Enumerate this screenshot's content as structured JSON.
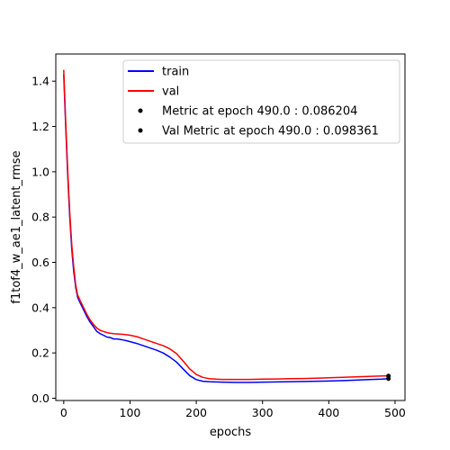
{
  "chart_data": {
    "type": "line",
    "title": "",
    "xlabel": "epochs",
    "ylabel": "f1tof4_w_ae1_latent_rmse",
    "xlim": [
      -12,
      515
    ],
    "ylim": [
      -0.01,
      1.52
    ],
    "xticks": [
      0,
      100,
      200,
      300,
      400,
      500
    ],
    "yticks": [
      0.0,
      0.2,
      0.4,
      0.6,
      0.8,
      1.0,
      1.2,
      1.4
    ],
    "xtick_labels": [
      "0",
      "100",
      "200",
      "300",
      "400",
      "500"
    ],
    "ytick_labels": [
      "0.0",
      "0.2",
      "0.4",
      "0.6",
      "0.8",
      "1.0",
      "1.2",
      "1.4"
    ],
    "grid": false,
    "legend_position": "top-right",
    "series": [
      {
        "name": "train",
        "color": "#0000ff",
        "x": [
          0,
          3,
          6,
          9,
          12,
          15,
          18,
          21,
          25,
          30,
          35,
          40,
          45,
          50,
          55,
          60,
          65,
          70,
          75,
          80,
          85,
          90,
          95,
          100,
          110,
          120,
          130,
          140,
          150,
          160,
          170,
          180,
          190,
          200,
          210,
          220,
          230,
          240,
          260,
          280,
          300,
          320,
          340,
          360,
          380,
          400,
          420,
          440,
          460,
          480,
          490
        ],
        "y": [
          1.43,
          1.2,
          0.98,
          0.8,
          0.66,
          0.56,
          0.49,
          0.445,
          0.42,
          0.39,
          0.36,
          0.335,
          0.315,
          0.295,
          0.285,
          0.278,
          0.27,
          0.268,
          0.262,
          0.262,
          0.26,
          0.257,
          0.254,
          0.25,
          0.242,
          0.232,
          0.222,
          0.212,
          0.2,
          0.182,
          0.16,
          0.13,
          0.1,
          0.082,
          0.075,
          0.073,
          0.072,
          0.071,
          0.07,
          0.07,
          0.071,
          0.072,
          0.073,
          0.074,
          0.075,
          0.076,
          0.078,
          0.08,
          0.082,
          0.084,
          0.086
        ]
      },
      {
        "name": "val",
        "color": "#ff0000",
        "x": [
          0,
          3,
          6,
          9,
          12,
          15,
          18,
          21,
          25,
          30,
          35,
          40,
          45,
          50,
          55,
          60,
          65,
          70,
          75,
          80,
          85,
          90,
          95,
          100,
          110,
          120,
          130,
          140,
          150,
          160,
          170,
          180,
          190,
          200,
          210,
          220,
          230,
          240,
          260,
          280,
          300,
          320,
          340,
          360,
          380,
          400,
          420,
          440,
          460,
          480,
          490
        ],
        "y": [
          1.45,
          1.22,
          1.0,
          0.82,
          0.68,
          0.58,
          0.5,
          0.455,
          0.43,
          0.4,
          0.37,
          0.345,
          0.325,
          0.31,
          0.3,
          0.295,
          0.29,
          0.287,
          0.285,
          0.284,
          0.283,
          0.282,
          0.28,
          0.278,
          0.272,
          0.262,
          0.252,
          0.242,
          0.232,
          0.218,
          0.198,
          0.165,
          0.13,
          0.105,
          0.092,
          0.086,
          0.084,
          0.083,
          0.083,
          0.083,
          0.084,
          0.085,
          0.086,
          0.087,
          0.088,
          0.09,
          0.092,
          0.094,
          0.096,
          0.098,
          0.099
        ]
      },
      {
        "name": "Metric at epoch 490.0 : 0.086204",
        "color": "#000000",
        "marker": "point",
        "x": [
          490
        ],
        "y": [
          0.086204
        ]
      },
      {
        "name": "Val Metric at epoch 490.0 : 0.098361",
        "color": "#000000",
        "marker": "point",
        "x": [
          490
        ],
        "y": [
          0.098361
        ]
      }
    ]
  }
}
